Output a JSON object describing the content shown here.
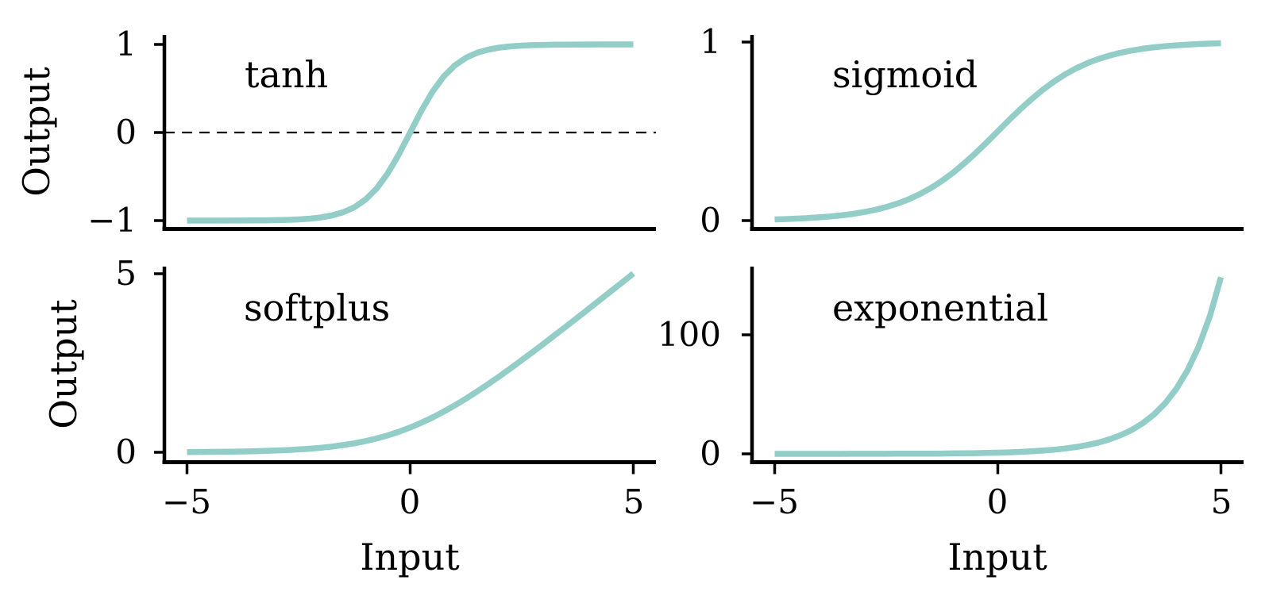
{
  "colors": {
    "curve": "#92cdc7",
    "axis": "#000000",
    "text": "#000000",
    "zero_line": "#111111",
    "background": "#ffffff"
  },
  "chart_data": {
    "type": "line",
    "x": [
      -5,
      -4.75,
      -4.5,
      -4.25,
      -4,
      -3.75,
      -3.5,
      -3.25,
      -3,
      -2.75,
      -2.5,
      -2.25,
      -2,
      -1.75,
      -1.5,
      -1.25,
      -1,
      -0.75,
      -0.5,
      -0.25,
      0,
      0.25,
      0.5,
      0.75,
      1,
      1.25,
      1.5,
      1.75,
      2,
      2.25,
      2.5,
      2.75,
      3,
      3.25,
      3.5,
      3.75,
      4,
      4.25,
      4.5,
      4.75,
      5
    ],
    "series": [
      {
        "name": "tanh",
        "values": [
          -0.9999,
          -0.9999,
          -0.9998,
          -0.9996,
          -0.9993,
          -0.9989,
          -0.9982,
          -0.997,
          -0.995,
          -0.9919,
          -0.9866,
          -0.978,
          -0.964,
          -0.9414,
          -0.9051,
          -0.8483,
          -0.7616,
          -0.6351,
          -0.4621,
          -0.2449,
          0,
          0.2449,
          0.4621,
          0.6351,
          0.7616,
          0.8483,
          0.9051,
          0.9414,
          0.964,
          0.978,
          0.9866,
          0.9919,
          0.995,
          0.997,
          0.9982,
          0.9989,
          0.9993,
          0.9996,
          0.9998,
          0.9999,
          0.9999
        ]
      },
      {
        "name": "sigmoid",
        "values": [
          0.0067,
          0.0086,
          0.011,
          0.0141,
          0.018,
          0.023,
          0.0293,
          0.0373,
          0.0474,
          0.0601,
          0.0759,
          0.0953,
          0.1192,
          0.148,
          0.1824,
          0.2227,
          0.2689,
          0.3208,
          0.3775,
          0.4378,
          0.5,
          0.5622,
          0.6225,
          0.6792,
          0.7311,
          0.7773,
          0.8176,
          0.852,
          0.8808,
          0.9047,
          0.9241,
          0.9399,
          0.9526,
          0.9627,
          0.9707,
          0.977,
          0.982,
          0.9859,
          0.989,
          0.9914,
          0.9933
        ]
      },
      {
        "name": "softplus",
        "values": [
          0.0067,
          0.0086,
          0.011,
          0.0142,
          0.0181,
          0.0232,
          0.0297,
          0.038,
          0.0486,
          0.062,
          0.0789,
          0.1002,
          0.1269,
          0.1602,
          0.2014,
          0.252,
          0.3133,
          0.3869,
          0.4741,
          0.5759,
          0.6931,
          0.8259,
          0.9741,
          1.1369,
          1.3133,
          1.502,
          1.7014,
          1.9102,
          2.1269,
          2.3502,
          2.5789,
          2.812,
          3.0486,
          3.288,
          3.5297,
          3.7732,
          4.0181,
          4.2642,
          4.511,
          4.7586,
          5.0067
        ]
      },
      {
        "name": "exponential",
        "values": [
          0.0067,
          0.0087,
          0.0111,
          0.0143,
          0.0183,
          0.0235,
          0.0302,
          0.0388,
          0.0498,
          0.0639,
          0.0821,
          0.1054,
          0.1353,
          0.1738,
          0.2231,
          0.2865,
          0.3679,
          0.4724,
          0.6065,
          0.7788,
          1,
          1.284,
          1.6487,
          2.117,
          2.7183,
          3.4903,
          4.4817,
          5.7546,
          7.3891,
          9.4877,
          12.1825,
          15.6426,
          20.0855,
          25.7903,
          33.1155,
          42.5211,
          54.5982,
          70.1054,
          90.0171,
          115.5843,
          148.4132
        ]
      }
    ],
    "subplots": [
      {
        "title": "tanh",
        "xlabel": "",
        "ylabel": "Output",
        "xlim": [
          -5.5,
          5.5
        ],
        "ylim": [
          -1.1,
          1.1
        ],
        "ytick_labels": [
          "1",
          "0",
          "−1"
        ],
        "ytick_values": [
          1,
          0,
          -1
        ],
        "xtick_labels": [],
        "xtick_values": [],
        "zero_dashed_line": true,
        "legend": "none",
        "grid": false
      },
      {
        "title": "sigmoid",
        "xlabel": "",
        "ylabel": "",
        "xlim": [
          -5.5,
          5.5
        ],
        "ylim": [
          -0.05,
          1.05
        ],
        "ytick_labels": [
          "1",
          "0"
        ],
        "ytick_values": [
          1,
          0
        ],
        "xtick_labels": [],
        "xtick_values": [],
        "zero_dashed_line": false,
        "legend": "none",
        "grid": false
      },
      {
        "title": "softplus",
        "xlabel": "Input",
        "ylabel": "Output",
        "xlim": [
          -5.5,
          5.5
        ],
        "ylim": [
          -0.26,
          5.26
        ],
        "ytick_labels": [
          "5",
          "0"
        ],
        "ytick_values": [
          5,
          0
        ],
        "xtick_labels": [
          "−5",
          "0",
          "5"
        ],
        "xtick_values": [
          -5,
          0,
          5
        ],
        "zero_dashed_line": false,
        "legend": "none",
        "grid": false
      },
      {
        "title": "exponential",
        "xlabel": "Input",
        "ylabel": "",
        "xlim": [
          -5.5,
          5.5
        ],
        "ylim": [
          -7.4,
          155.8
        ],
        "ytick_labels": [
          "100",
          "0"
        ],
        "ytick_values": [
          100,
          0
        ],
        "xtick_labels": [
          "−5",
          "0",
          "5"
        ],
        "xtick_values": [
          -5,
          0,
          5
        ],
        "zero_dashed_line": false,
        "legend": "none",
        "grid": false
      }
    ]
  }
}
